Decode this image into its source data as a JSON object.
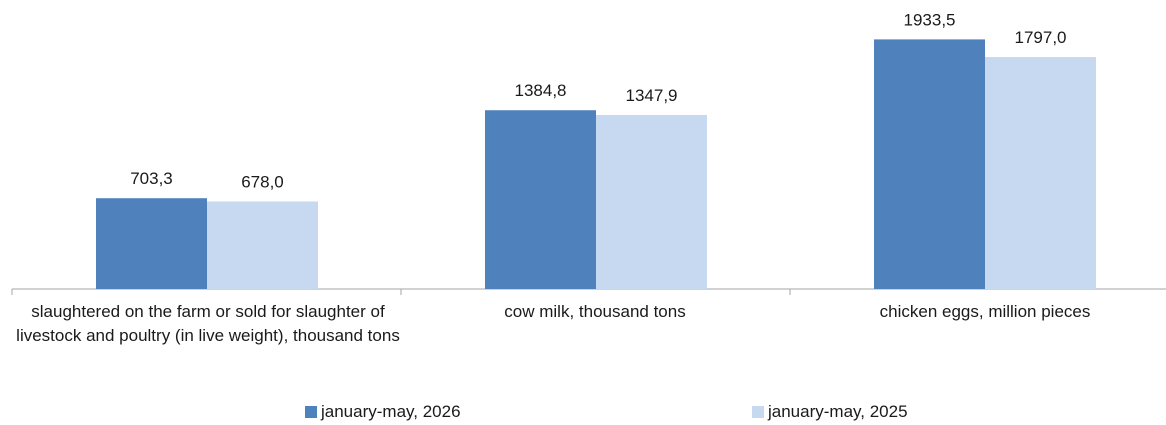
{
  "chart_data": {
    "type": "bar",
    "categories": [
      "slaughtered on the farm or sold for slaughter of livestock and poultry (in live weight), thousand tons",
      "cow milk, thousand tons",
      "chicken eggs, million pieces"
    ],
    "series": [
      {
        "name": "january-may, 2026",
        "values": [
          703.3,
          1384.8,
          1933.5
        ],
        "labels": [
          "703,3",
          "1384,8",
          "1933,5"
        ],
        "color": "#4f81bd"
      },
      {
        "name": "january-may, 2025",
        "values": [
          678.0,
          1347.9,
          1797.0
        ],
        "labels": [
          "678,0",
          "1347,9",
          "1797,0"
        ],
        "color": "#c6d9f0"
      }
    ],
    "ylim": [
      0,
      2200
    ],
    "grid": false,
    "legend_position": "bottom"
  }
}
